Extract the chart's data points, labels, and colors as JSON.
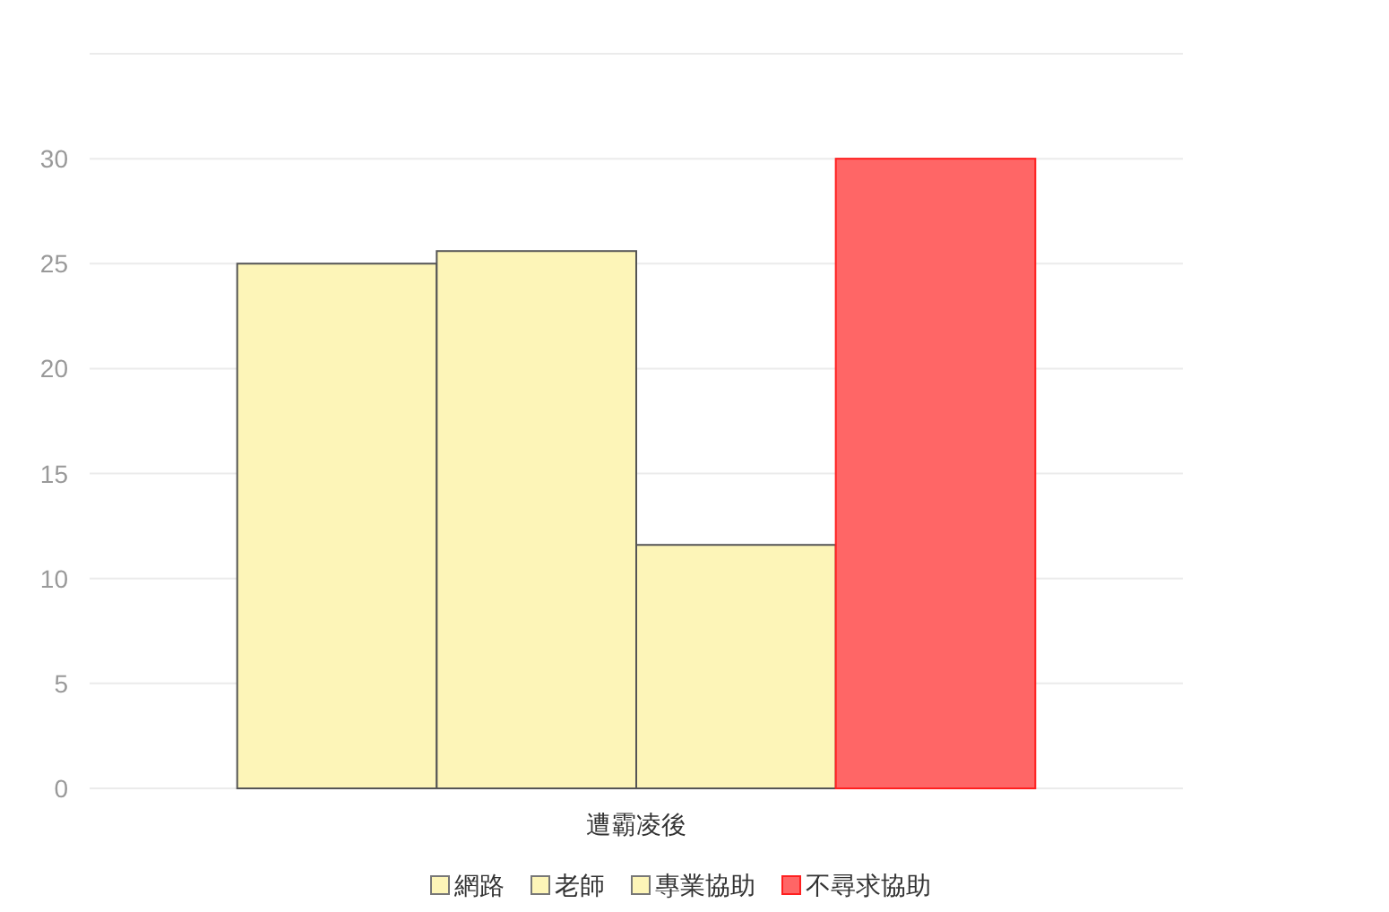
{
  "chart_data": {
    "type": "bar",
    "categories": [
      "遭霸凌後"
    ],
    "series": [
      {
        "name": "網路",
        "color": "#fdf5b8",
        "values": [
          25
        ]
      },
      {
        "name": "老師",
        "color": "#fdf5b8",
        "values": [
          25.6
        ]
      },
      {
        "name": "專業協助",
        "color": "#fdf5b8",
        "values": [
          11.6
        ]
      },
      {
        "name": "不尋求協助",
        "color": "#ff6666",
        "values": [
          30
        ]
      }
    ],
    "ylim": [
      0,
      35
    ],
    "yticks": [
      0,
      5,
      10,
      15,
      20,
      25,
      30,
      {
        "value": 35,
        "label": null
      }
    ],
    "grid": "y",
    "legend": "bottom"
  }
}
